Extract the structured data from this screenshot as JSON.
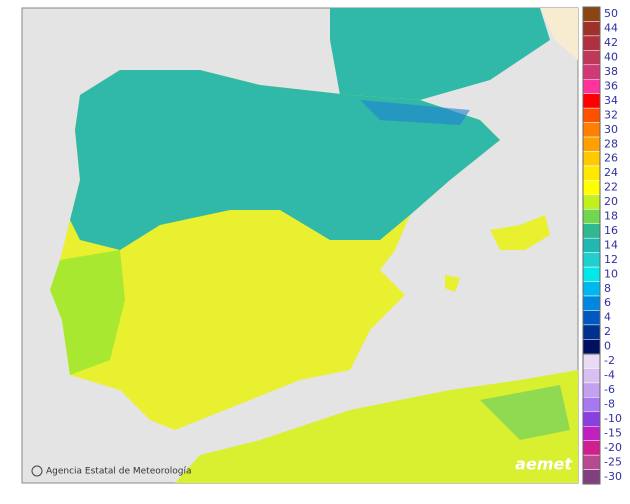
{
  "credit": "Agencia Estatal de Meteorología",
  "logo": "aemet",
  "legend": {
    "upper": [
      {
        "label": 50,
        "color": "#8b4513"
      },
      {
        "label": 44,
        "color": "#a0302a"
      },
      {
        "label": 42,
        "color": "#b03040"
      },
      {
        "label": 40,
        "color": "#c03858"
      },
      {
        "label": 38,
        "color": "#d03878"
      },
      {
        "label": 36,
        "color": "#ff3399"
      },
      {
        "label": 34,
        "color": "#ff0000"
      },
      {
        "label": 32,
        "color": "#ff5000"
      },
      {
        "label": 30,
        "color": "#ff8000"
      },
      {
        "label": 28,
        "color": "#ffa000"
      },
      {
        "label": 26,
        "color": "#ffc800"
      },
      {
        "label": 24,
        "color": "#ffe800"
      },
      {
        "label": 22,
        "color": "#ffff00"
      },
      {
        "label": 20,
        "color": "#c0f020"
      },
      {
        "label": 18,
        "color": "#70d850"
      },
      {
        "label": 16,
        "color": "#30b890"
      },
      {
        "label": 14,
        "color": "#20b8b0"
      },
      {
        "label": 12,
        "color": "#20d0d0"
      },
      {
        "label": 10,
        "color": "#00e8e8"
      },
      {
        "label": 8,
        "color": "#00b8f0"
      },
      {
        "label": 6,
        "color": "#0088e0"
      },
      {
        "label": 4,
        "color": "#0058c0"
      },
      {
        "label": 2,
        "color": "#003090"
      },
      {
        "label": 0,
        "color": "#001060"
      }
    ],
    "lower": [
      {
        "label": -2,
        "color": "#e8dcf4"
      },
      {
        "label": -4,
        "color": "#d8c0f0"
      },
      {
        "label": -6,
        "color": "#c4a0f0"
      },
      {
        "label": -8,
        "color": "#a878f0"
      },
      {
        "label": -10,
        "color": "#8840e0"
      },
      {
        "label": -15,
        "color": "#c020c0"
      },
      {
        "label": -20,
        "color": "#d02090"
      },
      {
        "label": -25,
        "color": "#b84890"
      },
      {
        "label": -30,
        "color": "#804080"
      }
    ]
  }
}
